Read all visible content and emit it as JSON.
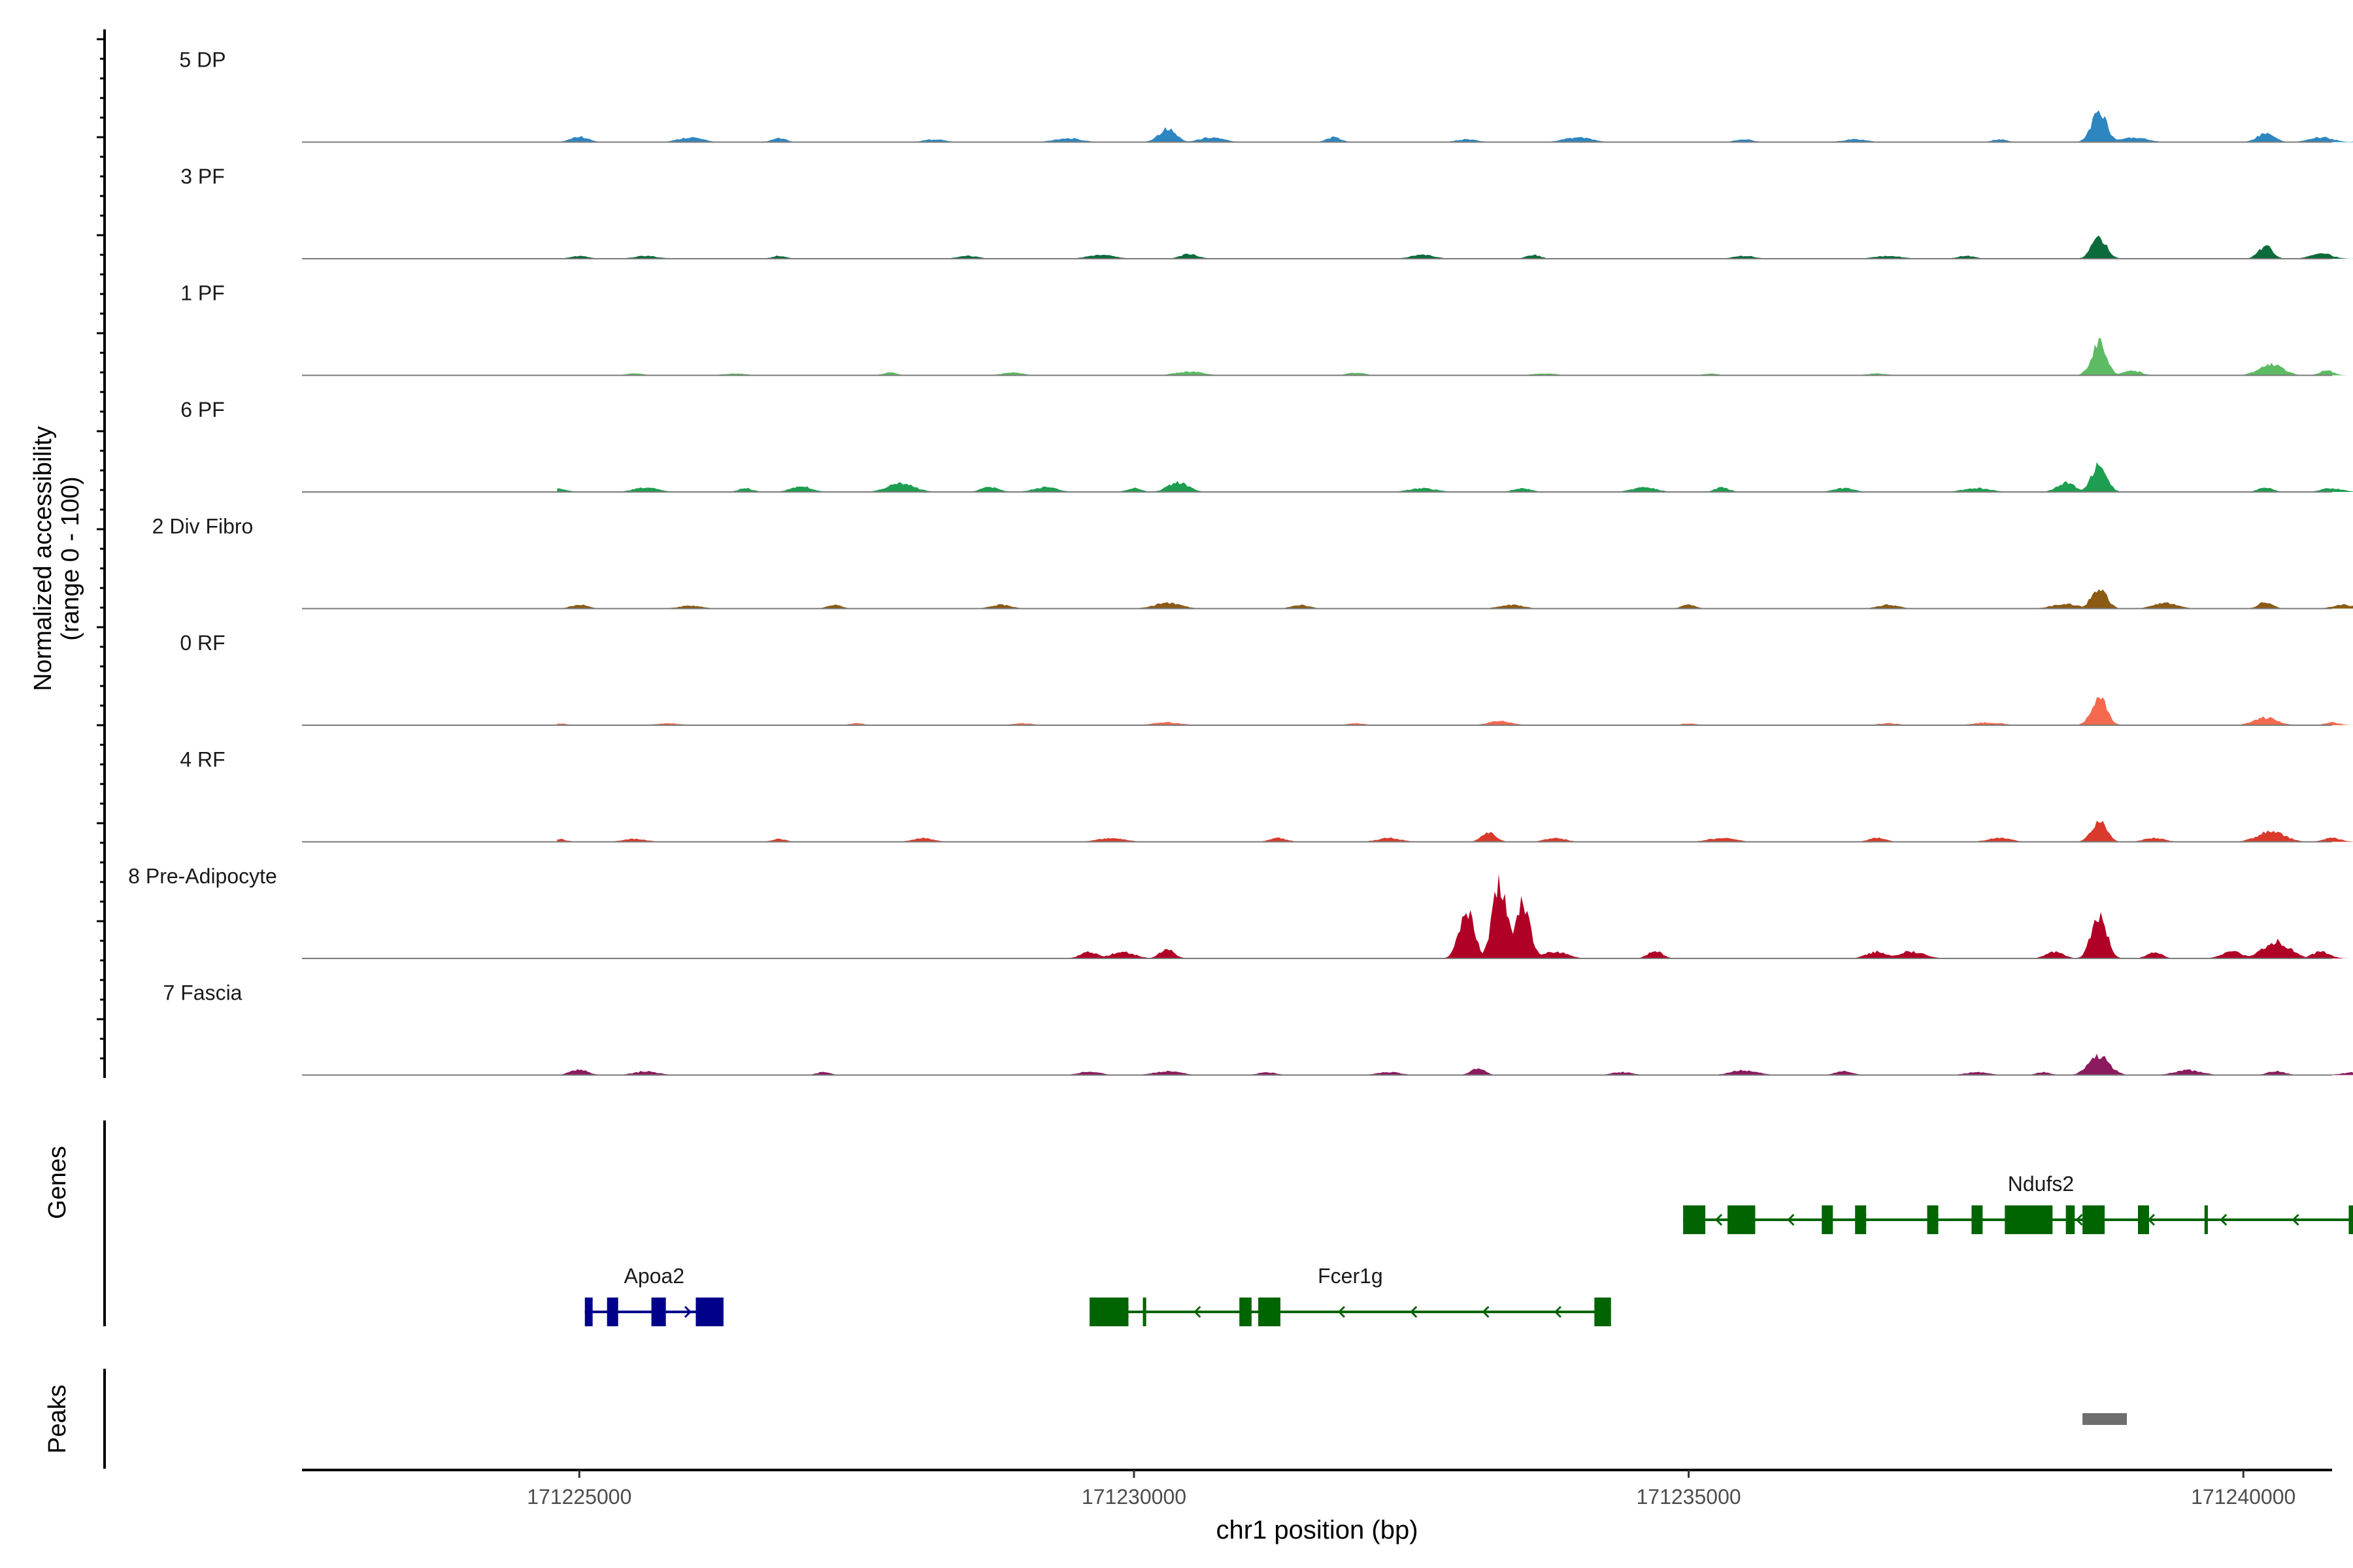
{
  "chart_data": {
    "type": "area",
    "title": "",
    "ylabel": "Normalized accessibility",
    "ylabel_sub": "(range 0 - 100)",
    "xlabel": "chr1 position (bp)",
    "xlim": [
      171222500,
      171240800
    ],
    "xticks": [
      {
        "value": 171225000,
        "label": "171225000"
      },
      {
        "value": 171230000,
        "label": "171230000"
      },
      {
        "value": 171235000,
        "label": "171235000"
      },
      {
        "value": 171240000,
        "label": "171240000"
      }
    ],
    "ylim": [
      0,
      100
    ],
    "series": [
      {
        "name": "5 DP",
        "color": "#2E86C1",
        "peaks": [
          {
            "x": 171225000,
            "y": 6
          },
          {
            "x": 171226000,
            "y": 5
          },
          {
            "x": 171226800,
            "y": 4
          },
          {
            "x": 171228200,
            "y": 3
          },
          {
            "x": 171229400,
            "y": 4
          },
          {
            "x": 171230300,
            "y": 14
          },
          {
            "x": 171230700,
            "y": 5
          },
          {
            "x": 171231800,
            "y": 5
          },
          {
            "x": 171233000,
            "y": 3
          },
          {
            "x": 171234000,
            "y": 5
          },
          {
            "x": 171235500,
            "y": 3
          },
          {
            "x": 171236500,
            "y": 3
          },
          {
            "x": 171237800,
            "y": 3
          },
          {
            "x": 171238700,
            "y": 32
          },
          {
            "x": 171239000,
            "y": 5
          },
          {
            "x": 171240200,
            "y": 9
          },
          {
            "x": 171240700,
            "y": 5
          },
          {
            "x": 171241100,
            "y": 3
          }
        ]
      },
      {
        "name": "3 PF",
        "color": "#0B6B3A",
        "peaks": [
          {
            "x": 171225000,
            "y": 3
          },
          {
            "x": 171225600,
            "y": 3
          },
          {
            "x": 171226800,
            "y": 3
          },
          {
            "x": 171228500,
            "y": 3
          },
          {
            "x": 171229700,
            "y": 4
          },
          {
            "x": 171230500,
            "y": 5
          },
          {
            "x": 171232600,
            "y": 4
          },
          {
            "x": 171233600,
            "y": 4
          },
          {
            "x": 171235500,
            "y": 3
          },
          {
            "x": 171236800,
            "y": 3
          },
          {
            "x": 171237500,
            "y": 3
          },
          {
            "x": 171238700,
            "y": 22
          },
          {
            "x": 171240200,
            "y": 13
          },
          {
            "x": 171240700,
            "y": 6
          }
        ]
      },
      {
        "name": "1 PF",
        "color": "#5DBB63",
        "peaks": [
          {
            "x": 171225500,
            "y": 2
          },
          {
            "x": 171226400,
            "y": 2
          },
          {
            "x": 171227800,
            "y": 3
          },
          {
            "x": 171228900,
            "y": 3
          },
          {
            "x": 171230500,
            "y": 4
          },
          {
            "x": 171232000,
            "y": 3
          },
          {
            "x": 171233700,
            "y": 2
          },
          {
            "x": 171235200,
            "y": 2
          },
          {
            "x": 171236700,
            "y": 2
          },
          {
            "x": 171238700,
            "y": 34
          },
          {
            "x": 171239000,
            "y": 5
          },
          {
            "x": 171240250,
            "y": 12
          },
          {
            "x": 171240750,
            "y": 5
          }
        ]
      },
      {
        "name": "6 PF",
        "color": "#1E9E50",
        "peaks": [
          {
            "x": 171224800,
            "y": 4
          },
          {
            "x": 171225600,
            "y": 5
          },
          {
            "x": 171226500,
            "y": 4
          },
          {
            "x": 171227000,
            "y": 6
          },
          {
            "x": 171227900,
            "y": 9
          },
          {
            "x": 171228700,
            "y": 5
          },
          {
            "x": 171229200,
            "y": 5
          },
          {
            "x": 171230000,
            "y": 4
          },
          {
            "x": 171230400,
            "y": 10
          },
          {
            "x": 171232600,
            "y": 4
          },
          {
            "x": 171233500,
            "y": 4
          },
          {
            "x": 171234600,
            "y": 5
          },
          {
            "x": 171235300,
            "y": 5
          },
          {
            "x": 171236400,
            "y": 4
          },
          {
            "x": 171237600,
            "y": 4
          },
          {
            "x": 171238400,
            "y": 10
          },
          {
            "x": 171238700,
            "y": 30
          },
          {
            "x": 171240200,
            "y": 5
          },
          {
            "x": 171240800,
            "y": 4
          }
        ]
      },
      {
        "name": "2 Div Fibro",
        "color": "#8B5A14",
        "peaks": [
          {
            "x": 171225000,
            "y": 4
          },
          {
            "x": 171226000,
            "y": 3
          },
          {
            "x": 171227300,
            "y": 4
          },
          {
            "x": 171228800,
            "y": 4
          },
          {
            "x": 171230300,
            "y": 6
          },
          {
            "x": 171231500,
            "y": 4
          },
          {
            "x": 171233400,
            "y": 4
          },
          {
            "x": 171235000,
            "y": 4
          },
          {
            "x": 171236800,
            "y": 4
          },
          {
            "x": 171238400,
            "y": 5
          },
          {
            "x": 171238700,
            "y": 22
          },
          {
            "x": 171239300,
            "y": 6
          },
          {
            "x": 171240200,
            "y": 7
          },
          {
            "x": 171240900,
            "y": 4
          }
        ]
      },
      {
        "name": "0 RF",
        "color": "#F46A4E",
        "peaks": [
          {
            "x": 171224800,
            "y": 2
          },
          {
            "x": 171225800,
            "y": 2
          },
          {
            "x": 171227500,
            "y": 2
          },
          {
            "x": 171229000,
            "y": 2
          },
          {
            "x": 171230300,
            "y": 3
          },
          {
            "x": 171232000,
            "y": 2
          },
          {
            "x": 171233300,
            "y": 4
          },
          {
            "x": 171235000,
            "y": 2
          },
          {
            "x": 171236800,
            "y": 2
          },
          {
            "x": 171237700,
            "y": 3
          },
          {
            "x": 171238700,
            "y": 30
          },
          {
            "x": 171240200,
            "y": 8
          },
          {
            "x": 171240800,
            "y": 3
          }
        ]
      },
      {
        "name": "4 RF",
        "color": "#D93A2B",
        "peaks": [
          {
            "x": 171224800,
            "y": 3
          },
          {
            "x": 171225500,
            "y": 3
          },
          {
            "x": 171226800,
            "y": 3
          },
          {
            "x": 171228100,
            "y": 4
          },
          {
            "x": 171229800,
            "y": 4
          },
          {
            "x": 171231300,
            "y": 4
          },
          {
            "x": 171232300,
            "y": 4
          },
          {
            "x": 171233200,
            "y": 10
          },
          {
            "x": 171233800,
            "y": 4
          },
          {
            "x": 171235300,
            "y": 4
          },
          {
            "x": 171236700,
            "y": 4
          },
          {
            "x": 171237800,
            "y": 4
          },
          {
            "x": 171238700,
            "y": 22
          },
          {
            "x": 171239200,
            "y": 4
          },
          {
            "x": 171240250,
            "y": 11
          },
          {
            "x": 171240800,
            "y": 4
          }
        ]
      },
      {
        "name": "8 Pre-Adipocyte",
        "color": "#B00026",
        "peaks": [
          {
            "x": 171229600,
            "y": 7
          },
          {
            "x": 171229900,
            "y": 7
          },
          {
            "x": 171230300,
            "y": 10
          },
          {
            "x": 171233000,
            "y": 52
          },
          {
            "x": 171233300,
            "y": 80
          },
          {
            "x": 171233500,
            "y": 60
          },
          {
            "x": 171233800,
            "y": 7
          },
          {
            "x": 171234700,
            "y": 8
          },
          {
            "x": 171236700,
            "y": 7
          },
          {
            "x": 171237000,
            "y": 7
          },
          {
            "x": 171238300,
            "y": 7
          },
          {
            "x": 171238700,
            "y": 46
          },
          {
            "x": 171239200,
            "y": 7
          },
          {
            "x": 171239900,
            "y": 7
          },
          {
            "x": 171240300,
            "y": 18
          },
          {
            "x": 171240700,
            "y": 7
          }
        ]
      },
      {
        "name": "7 Fascia",
        "color": "#8B1A5E",
        "peaks": [
          {
            "x": 171225000,
            "y": 6
          },
          {
            "x": 171225600,
            "y": 4
          },
          {
            "x": 171227200,
            "y": 3
          },
          {
            "x": 171229600,
            "y": 4
          },
          {
            "x": 171230300,
            "y": 4
          },
          {
            "x": 171231200,
            "y": 3
          },
          {
            "x": 171232300,
            "y": 3
          },
          {
            "x": 171233100,
            "y": 7
          },
          {
            "x": 171234400,
            "y": 3
          },
          {
            "x": 171235500,
            "y": 5
          },
          {
            "x": 171236400,
            "y": 4
          },
          {
            "x": 171237600,
            "y": 3
          },
          {
            "x": 171238200,
            "y": 3
          },
          {
            "x": 171238700,
            "y": 20
          },
          {
            "x": 171239500,
            "y": 5
          },
          {
            "x": 171240300,
            "y": 4
          },
          {
            "x": 171241000,
            "y": 3
          }
        ]
      }
    ]
  },
  "genes_panel": {
    "label": "Genes",
    "genes": [
      {
        "name": "Apoa2",
        "strand": "+",
        "color": "#00008B",
        "row": 2,
        "start": 171225050,
        "end": 171226300,
        "exons": [
          [
            171225050,
            171225120
          ],
          [
            171225250,
            171225350
          ],
          [
            171225650,
            171225780
          ],
          [
            171226050,
            171226300
          ]
        ]
      },
      {
        "name": "Fcer1g",
        "strand": "-",
        "color": "#006400",
        "row": 2,
        "start": 171229600,
        "end": 171234300,
        "exons": [
          [
            171229600,
            171229950
          ],
          [
            171230080,
            171230110
          ],
          [
            171230950,
            171231060
          ],
          [
            171231120,
            171231320
          ],
          [
            171234150,
            171234300
          ]
        ]
      },
      {
        "name": "Ndufs2",
        "strand": "-",
        "color": "#006400",
        "row": 1,
        "start": 171234950,
        "end": 171241400,
        "exons": [
          [
            171234950,
            171235150
          ],
          [
            171235350,
            171235600
          ],
          [
            171236200,
            171236300
          ],
          [
            171236500,
            171236600
          ],
          [
            171237150,
            171237250
          ],
          [
            171237550,
            171237650
          ],
          [
            171237850,
            171238280
          ],
          [
            171238400,
            171238480
          ],
          [
            171238550,
            171238750
          ],
          [
            171239050,
            171239150
          ],
          [
            171239650,
            171239680
          ],
          [
            171240950,
            171241150
          ]
        ]
      }
    ]
  },
  "peaks_panel": {
    "label": "Peaks",
    "color": "#6E6E6E",
    "peaks": [
      {
        "start": 171238550,
        "end": 171238950
      }
    ]
  }
}
